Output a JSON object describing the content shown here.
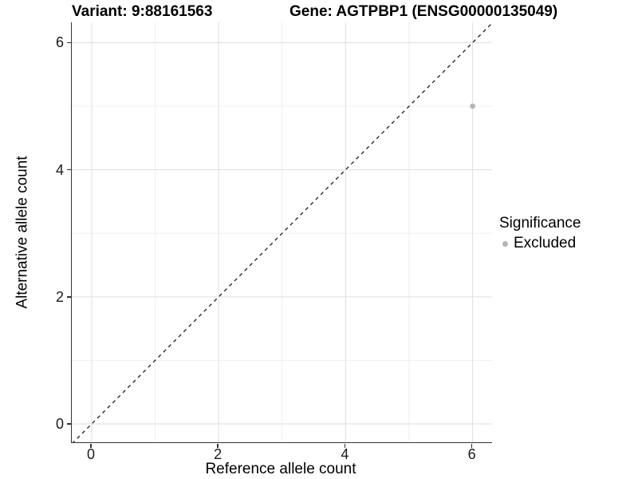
{
  "titles": {
    "variant": "Variant: 9:88161563",
    "gene": "Gene: AGTPBP1 (ENSG00000135049)"
  },
  "axes": {
    "x": {
      "label": "Reference allele count"
    },
    "y": {
      "label": "Alternative allele count"
    }
  },
  "legend": {
    "title": "Significance",
    "items": [
      {
        "label": "Excluded",
        "color": "#B5B5B5"
      }
    ]
  },
  "colors": {
    "point": "#B5B5B5",
    "grid_major": "#E3E3E3",
    "grid_minor": "#EFEFEF",
    "axis_line": "#333333",
    "identity_line": "#1a1a1a"
  },
  "chart_data": {
    "type": "scatter",
    "title": "Variant: 9:88161563   Gene: AGTPBP1 (ENSG00000135049)",
    "xlabel": "Reference allele count",
    "ylabel": "Alternative allele count",
    "xlim": [
      -0.31,
      6.31
    ],
    "ylim": [
      -0.31,
      6.31
    ],
    "x_ticks": [
      0,
      2,
      4,
      6
    ],
    "y_ticks": [
      0,
      2,
      4,
      6
    ],
    "minor_breaks": [
      1,
      3,
      5
    ],
    "grid": "major+minor",
    "legend_position": "right",
    "reference_line": {
      "type": "identity y=x",
      "style": "dashed",
      "color": "#1a1a1a"
    },
    "series": [
      {
        "name": "Excluded",
        "color": "#B5B5B5",
        "points": [
          {
            "x": 6,
            "y": 5
          }
        ]
      }
    ]
  }
}
